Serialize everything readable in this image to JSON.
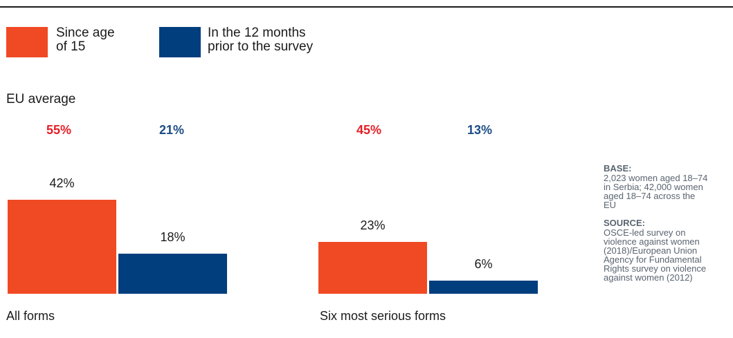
{
  "legend": [
    {
      "label_line1": "Since age",
      "label_line2": "of 15",
      "color": "#f04a24"
    },
    {
      "label_line1": "In the 12 months",
      "label_line2": "prior to the survey",
      "color": "#003e7e"
    }
  ],
  "subtitle": "EU average",
  "eu_average": [
    {
      "since15": "55%",
      "last12": "21%"
    },
    {
      "since15": "45%",
      "last12": "13%"
    }
  ],
  "notes": {
    "base_heading": "BASE:",
    "base_lines": [
      "2,023 women aged 18–74",
      "in Serbia; 42,000 women",
      "aged 18–74 across the",
      "EU"
    ],
    "source_heading": "SOURCE:",
    "source_lines": [
      "OSCE-led survey on",
      "violence against women",
      "(2018)/European Union",
      "Agency for Fundamental",
      "Rights survey on violence",
      "against women (2012)"
    ]
  },
  "chart_data": {
    "type": "bar",
    "categories": [
      "All forms",
      "Six most serious forms"
    ],
    "series": [
      {
        "name": "Since age of 15",
        "values": [
          42,
          23
        ],
        "labels": [
          "42%",
          "23%"
        ],
        "color": "#f04a24"
      },
      {
        "name": "In the 12 months prior to the survey",
        "values": [
          18,
          6
        ],
        "labels": [
          "18%",
          "6%"
        ],
        "color": "#003e7e"
      }
    ],
    "unit": "%",
    "grid": false
  }
}
